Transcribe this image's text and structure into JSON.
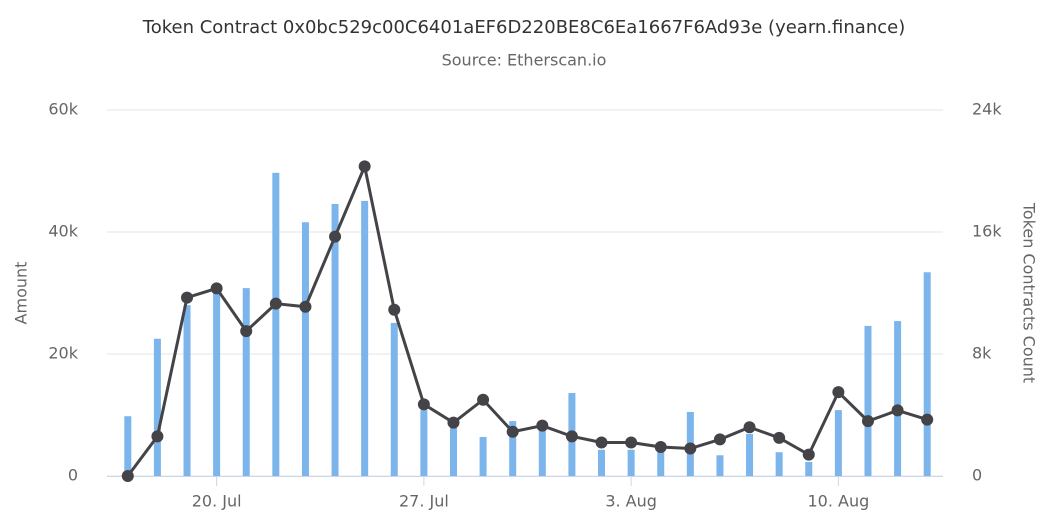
{
  "chart_data": {
    "type": "combo",
    "title": "Token Contract 0x0bc529c00C6401aEF6D220BE8C6Ea1667F6Ad93e (yearn.finance)",
    "subtitle": "Source: Etherscan.io",
    "ylabel": "Amount",
    "y2label": "Token Contracts Count",
    "categories": [
      null,
      null,
      null,
      "20. Jul",
      null,
      null,
      null,
      null,
      null,
      null,
      "27. Jul",
      null,
      null,
      null,
      null,
      null,
      null,
      "3. Aug",
      null,
      null,
      null,
      null,
      null,
      null,
      "10. Aug",
      null,
      null,
      null
    ],
    "series": [
      {
        "type": "bar",
        "color": "#7cb5ec",
        "values": [
          9800,
          22500,
          28000,
          30000,
          30800,
          49700,
          41600,
          44600,
          45100,
          25100,
          10800,
          7900,
          6400,
          9000,
          7900,
          13600,
          4300,
          4300,
          3900,
          10500,
          3400,
          6900,
          3900,
          2300,
          10800,
          24600,
          25400,
          33400
        ]
      },
      {
        "type": "line",
        "axis": "y2",
        "color": "#434348",
        "values": [
          0,
          2600,
          11700,
          12300,
          9500,
          11300,
          11100,
          15700,
          20300,
          10900,
          4700,
          3500,
          5000,
          2900,
          3300,
          2600,
          2200,
          2200,
          1900,
          1800,
          2400,
          3200,
          2500,
          1400,
          5500,
          3600,
          4300,
          3700
        ]
      }
    ],
    "ylim": [
      0,
      60000
    ],
    "yticks": [
      0,
      {
        "value": 20000,
        "label": "20k"
      },
      {
        "value": 40000,
        "label": "40k"
      },
      {
        "value": 60000,
        "label": "60k"
      }
    ],
    "y2lim": [
      0,
      24000
    ],
    "y2ticks": [
      0,
      {
        "value": 8000,
        "label": "8k"
      },
      {
        "value": 16000,
        "label": "16k"
      },
      {
        "value": 24000,
        "label": "24k"
      }
    ],
    "grid": true
  }
}
